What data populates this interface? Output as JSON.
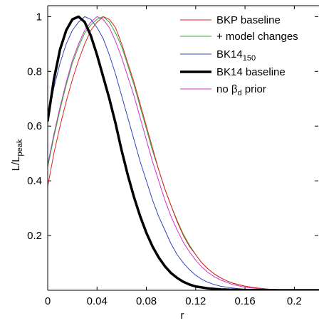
{
  "chart_data": {
    "type": "line",
    "xlabel": "r",
    "ylabel": {
      "main": "L/L",
      "sub": "peak"
    },
    "xlim": [
      0,
      0.22
    ],
    "ylim": [
      0,
      1.04
    ],
    "x_ticks": [
      0,
      0.04,
      0.08,
      0.12,
      0.16,
      0.2
    ],
    "x_tick_labels": [
      "0",
      "0.04",
      "0.08",
      "0.12",
      "0.16",
      "0.2"
    ],
    "y_ticks": [
      0.2,
      0.4,
      0.6,
      0.8,
      1.0
    ],
    "y_tick_labels": [
      "0.2",
      "0.4",
      "0.6",
      "0.8",
      "1"
    ],
    "legend_position": "top-right",
    "series": [
      {
        "name": "BKP baseline",
        "color": "#dd2222",
        "line_width": 1,
        "x": [
          0,
          0.005,
          0.01,
          0.015,
          0.02,
          0.025,
          0.03,
          0.035,
          0.04,
          0.045,
          0.05,
          0.055,
          0.06,
          0.065,
          0.07,
          0.075,
          0.08,
          0.085,
          0.09,
          0.095,
          0.1,
          0.105,
          0.11,
          0.115,
          0.12,
          0.125,
          0.13,
          0.135,
          0.14,
          0.145,
          0.15,
          0.16,
          0.17,
          0.18,
          0.19,
          0.2,
          0.21,
          0.22
        ],
        "y": [
          0.38,
          0.5,
          0.6,
          0.69,
          0.77,
          0.84,
          0.9,
          0.95,
          0.98,
          1.0,
          0.99,
          0.96,
          0.9,
          0.83,
          0.76,
          0.68,
          0.6,
          0.52,
          0.44,
          0.37,
          0.31,
          0.25,
          0.2,
          0.16,
          0.13,
          0.1,
          0.078,
          0.06,
          0.046,
          0.035,
          0.026,
          0.015,
          0.008,
          0.004,
          0.002,
          0.001,
          0.0005,
          0.0002
        ]
      },
      {
        "name": "+ model changes",
        "color": "#33aa33",
        "line_width": 1,
        "x": [
          0,
          0.005,
          0.01,
          0.015,
          0.02,
          0.025,
          0.03,
          0.035,
          0.04,
          0.045,
          0.05,
          0.055,
          0.06,
          0.065,
          0.07,
          0.075,
          0.08,
          0.085,
          0.09,
          0.095,
          0.1,
          0.105,
          0.11,
          0.115,
          0.12,
          0.125,
          0.13,
          0.135,
          0.14,
          0.145,
          0.15,
          0.16,
          0.17,
          0.18,
          0.19,
          0.2,
          0.21,
          0.22
        ],
        "y": [
          0.45,
          0.56,
          0.66,
          0.75,
          0.83,
          0.89,
          0.94,
          0.97,
          0.99,
          1.0,
          0.98,
          0.94,
          0.89,
          0.82,
          0.75,
          0.67,
          0.59,
          0.51,
          0.44,
          0.37,
          0.31,
          0.255,
          0.205,
          0.165,
          0.13,
          0.1,
          0.078,
          0.06,
          0.046,
          0.035,
          0.026,
          0.015,
          0.008,
          0.004,
          0.002,
          0.001,
          0.0005,
          0.0002
        ]
      },
      {
        "name": "BK14",
        "name_sub": "150",
        "color": "#3344bb",
        "line_width": 1,
        "x": [
          0,
          0.005,
          0.01,
          0.015,
          0.02,
          0.025,
          0.03,
          0.035,
          0.04,
          0.045,
          0.05,
          0.055,
          0.06,
          0.065,
          0.07,
          0.075,
          0.08,
          0.085,
          0.09,
          0.095,
          0.1,
          0.105,
          0.11,
          0.115,
          0.12,
          0.125,
          0.13,
          0.135,
          0.14,
          0.15,
          0.16,
          0.17,
          0.18,
          0.19,
          0.2,
          0.21,
          0.22
        ],
        "y": [
          0.62,
          0.74,
          0.83,
          0.9,
          0.95,
          0.98,
          1.0,
          0.99,
          0.96,
          0.92,
          0.86,
          0.79,
          0.71,
          0.63,
          0.55,
          0.47,
          0.4,
          0.33,
          0.27,
          0.22,
          0.17,
          0.13,
          0.1,
          0.075,
          0.055,
          0.04,
          0.029,
          0.021,
          0.015,
          0.008,
          0.004,
          0.002,
          0.001,
          0.0005,
          0.0002,
          0.0001,
          0.0001
        ]
      },
      {
        "name": "BK14 baseline",
        "color": "#000000",
        "line_width": 3.5,
        "x": [
          0,
          0.005,
          0.01,
          0.015,
          0.02,
          0.025,
          0.03,
          0.035,
          0.04,
          0.045,
          0.05,
          0.055,
          0.06,
          0.065,
          0.07,
          0.075,
          0.08,
          0.085,
          0.09,
          0.095,
          0.1,
          0.105,
          0.11,
          0.115,
          0.12,
          0.13,
          0.14,
          0.15,
          0.16,
          0.17,
          0.18,
          0.19,
          0.2,
          0.21,
          0.22
        ],
        "y": [
          0.62,
          0.77,
          0.88,
          0.95,
          0.99,
          1.0,
          0.98,
          0.93,
          0.86,
          0.78,
          0.7,
          0.61,
          0.51,
          0.42,
          0.34,
          0.27,
          0.21,
          0.16,
          0.12,
          0.088,
          0.063,
          0.045,
          0.031,
          0.021,
          0.014,
          0.007,
          0.003,
          0.0015,
          0.0007,
          0.0003,
          0.0001,
          0.0001,
          0,
          0,
          0
        ]
      },
      {
        "name": "no β",
        "name_sub": "d",
        "name_suffix": " prior",
        "color": "#cc33cc",
        "line_width": 1,
        "x": [
          0,
          0.005,
          0.01,
          0.015,
          0.02,
          0.025,
          0.03,
          0.035,
          0.04,
          0.045,
          0.05,
          0.055,
          0.06,
          0.065,
          0.07,
          0.075,
          0.08,
          0.085,
          0.09,
          0.095,
          0.1,
          0.105,
          0.11,
          0.115,
          0.12,
          0.125,
          0.13,
          0.135,
          0.14,
          0.15,
          0.16,
          0.17,
          0.18,
          0.19,
          0.2,
          0.21,
          0.22
        ],
        "y": [
          0.46,
          0.57,
          0.67,
          0.76,
          0.84,
          0.9,
          0.95,
          0.98,
          1.0,
          0.99,
          0.96,
          0.91,
          0.85,
          0.78,
          0.71,
          0.63,
          0.55,
          0.47,
          0.4,
          0.33,
          0.27,
          0.22,
          0.175,
          0.14,
          0.11,
          0.085,
          0.065,
          0.05,
          0.038,
          0.021,
          0.011,
          0.006,
          0.003,
          0.0015,
          0.0007,
          0.0003,
          0.0001
        ]
      }
    ]
  }
}
